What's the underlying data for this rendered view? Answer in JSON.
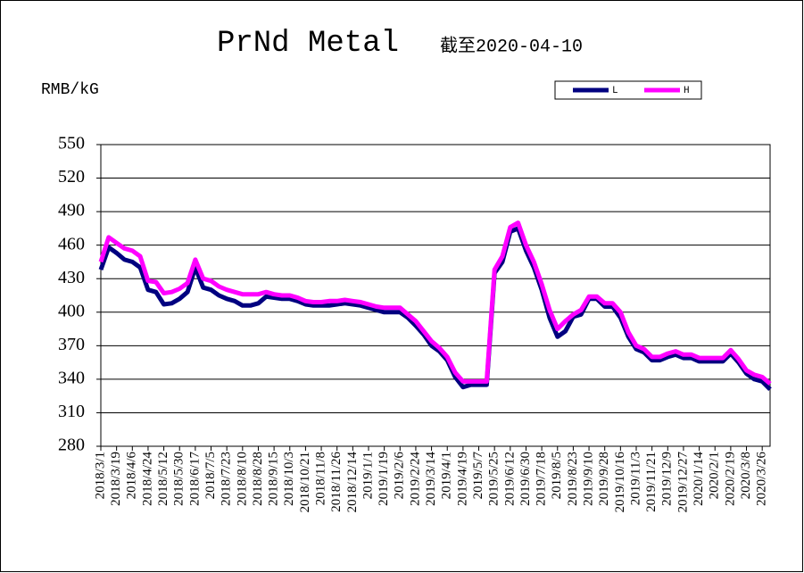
{
  "chart_data": {
    "type": "line",
    "title": "PrNd Metal",
    "subtitle": "截至2020-04-10",
    "y_label": "RMB/kG",
    "categories": [
      "2018/3/1",
      null,
      "2018/3/19",
      null,
      "2018/4/6",
      null,
      "2018/4/24",
      null,
      "2018/5/12",
      null,
      "2018/5/30",
      null,
      "2018/6/17",
      null,
      "2018/7/5",
      null,
      "2018/7/23",
      null,
      "2018/8/10",
      null,
      "2018/8/28",
      null,
      "2018/9/15",
      null,
      "2018/10/3",
      null,
      "2018/10/21",
      null,
      "2018/11/8",
      null,
      "2018/11/26",
      null,
      "2018/12/14",
      null,
      "2019/1/1",
      null,
      "2019/1/19",
      null,
      "2019/2/6",
      null,
      "2019/2/24",
      null,
      "2019/3/14",
      null,
      "2019/4/1",
      null,
      "2019/4/19",
      null,
      "2019/5/7",
      null,
      "2019/5/25",
      null,
      "2019/6/12",
      null,
      "2019/6/30",
      null,
      "2019/7/18",
      null,
      "2019/8/5",
      null,
      "2019/8/23",
      null,
      "2019/9/10",
      null,
      "2019/9/28",
      null,
      "2019/10/16",
      null,
      "2019/11/3",
      null,
      "2019/11/21",
      null,
      "2019/12/9",
      null,
      "2019/12/27",
      null,
      "2020/1/14",
      null,
      "2020/2/1",
      null,
      "2020/2/19",
      null,
      "2020/3/8",
      null,
      "2020/3/26",
      null
    ],
    "series": [
      {
        "name": "L",
        "color": "#000080",
        "values": [
          438,
          458,
          453,
          447,
          445,
          440,
          420,
          418,
          407,
          408,
          412,
          418,
          440,
          422,
          420,
          415,
          412,
          410,
          406,
          406,
          408,
          414,
          413,
          412,
          412,
          410,
          407,
          406,
          406,
          406,
          407,
          408,
          407,
          406,
          404,
          402,
          400,
          400,
          400,
          395,
          388,
          380,
          370,
          365,
          357,
          342,
          333,
          335,
          335,
          335,
          435,
          445,
          472,
          475,
          455,
          440,
          420,
          395,
          378,
          383,
          396,
          398,
          412,
          412,
          405,
          405,
          395,
          378,
          367,
          364,
          357,
          357,
          360,
          362,
          359,
          359,
          356,
          356,
          356,
          356,
          363,
          355,
          345,
          340,
          338,
          331
        ]
      },
      {
        "name": "H",
        "color": "#ff00ff",
        "values": [
          445,
          467,
          462,
          457,
          455,
          450,
          428,
          427,
          417,
          418,
          421,
          426,
          447,
          430,
          428,
          423,
          420,
          418,
          416,
          416,
          416,
          418,
          416,
          415,
          415,
          413,
          410,
          409,
          409,
          410,
          410,
          411,
          410,
          409,
          407,
          405,
          404,
          404,
          404,
          398,
          392,
          383,
          374,
          368,
          360,
          346,
          338,
          338,
          338,
          338,
          438,
          450,
          476,
          480,
          460,
          445,
          425,
          402,
          385,
          392,
          398,
          402,
          414,
          414,
          408,
          408,
          400,
          382,
          370,
          367,
          360,
          360,
          363,
          365,
          362,
          362,
          359,
          359,
          359,
          359,
          366,
          358,
          348,
          344,
          342,
          336
        ]
      }
    ],
    "ylim": [
      280,
      550
    ],
    "yticks": [
      280,
      310,
      340,
      370,
      400,
      430,
      460,
      490,
      520,
      550
    ],
    "grid": true,
    "legend": "top-right"
  }
}
